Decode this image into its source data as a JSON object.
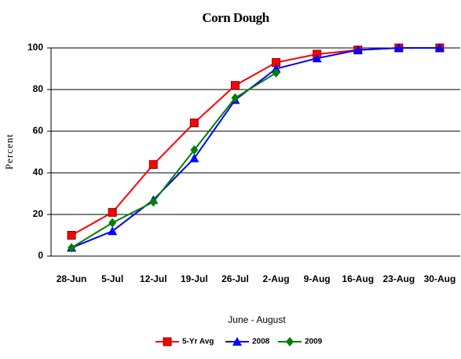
{
  "chart_data": {
    "type": "line",
    "title": "Corn Dough",
    "ylabel": "Percent",
    "xlabel": "June - August",
    "categories": [
      "28-Jun",
      "5-Jul",
      "12-Jul",
      "19-Jul",
      "26-Jul",
      "2-Aug",
      "9-Aug",
      "16-Aug",
      "23-Aug",
      "30-Aug"
    ],
    "series": [
      {
        "name": "5-Yr Avg",
        "color": "#ff0000",
        "marker": "square",
        "values": [
          10,
          21,
          44,
          64,
          82,
          93,
          97,
          99,
          100,
          100
        ]
      },
      {
        "name": "2008",
        "color": "#0000ff",
        "marker": "triangle",
        "values": [
          4,
          12,
          27,
          47,
          75,
          90,
          95,
          99,
          100,
          100
        ]
      },
      {
        "name": "2009",
        "color": "#008000",
        "marker": "diamond",
        "values": [
          4,
          16,
          26,
          51,
          76,
          88,
          null,
          null,
          null,
          null
        ]
      }
    ],
    "ylim": [
      0,
      100
    ],
    "yticks": [
      0,
      20,
      40,
      60,
      80,
      100
    ],
    "grid": true,
    "legend": "bottom"
  }
}
